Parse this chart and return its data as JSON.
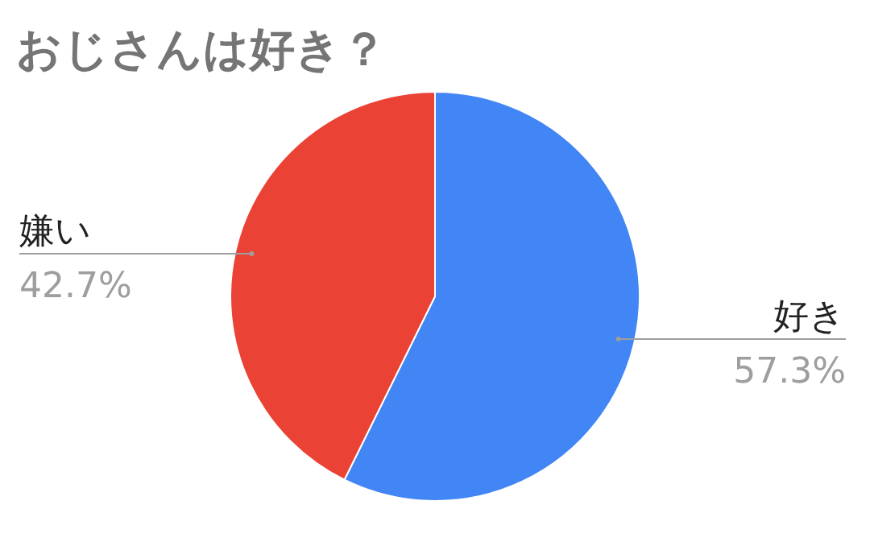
{
  "chart_data": {
    "type": "pie",
    "title": "おじさんは好き？",
    "categories": [
      "好き",
      "嫌い"
    ],
    "values": [
      57.3,
      42.7
    ],
    "value_labels": [
      "57.3%",
      "42.7%"
    ],
    "colors": [
      "#4285f4",
      "#ea4335"
    ],
    "legend": false
  }
}
